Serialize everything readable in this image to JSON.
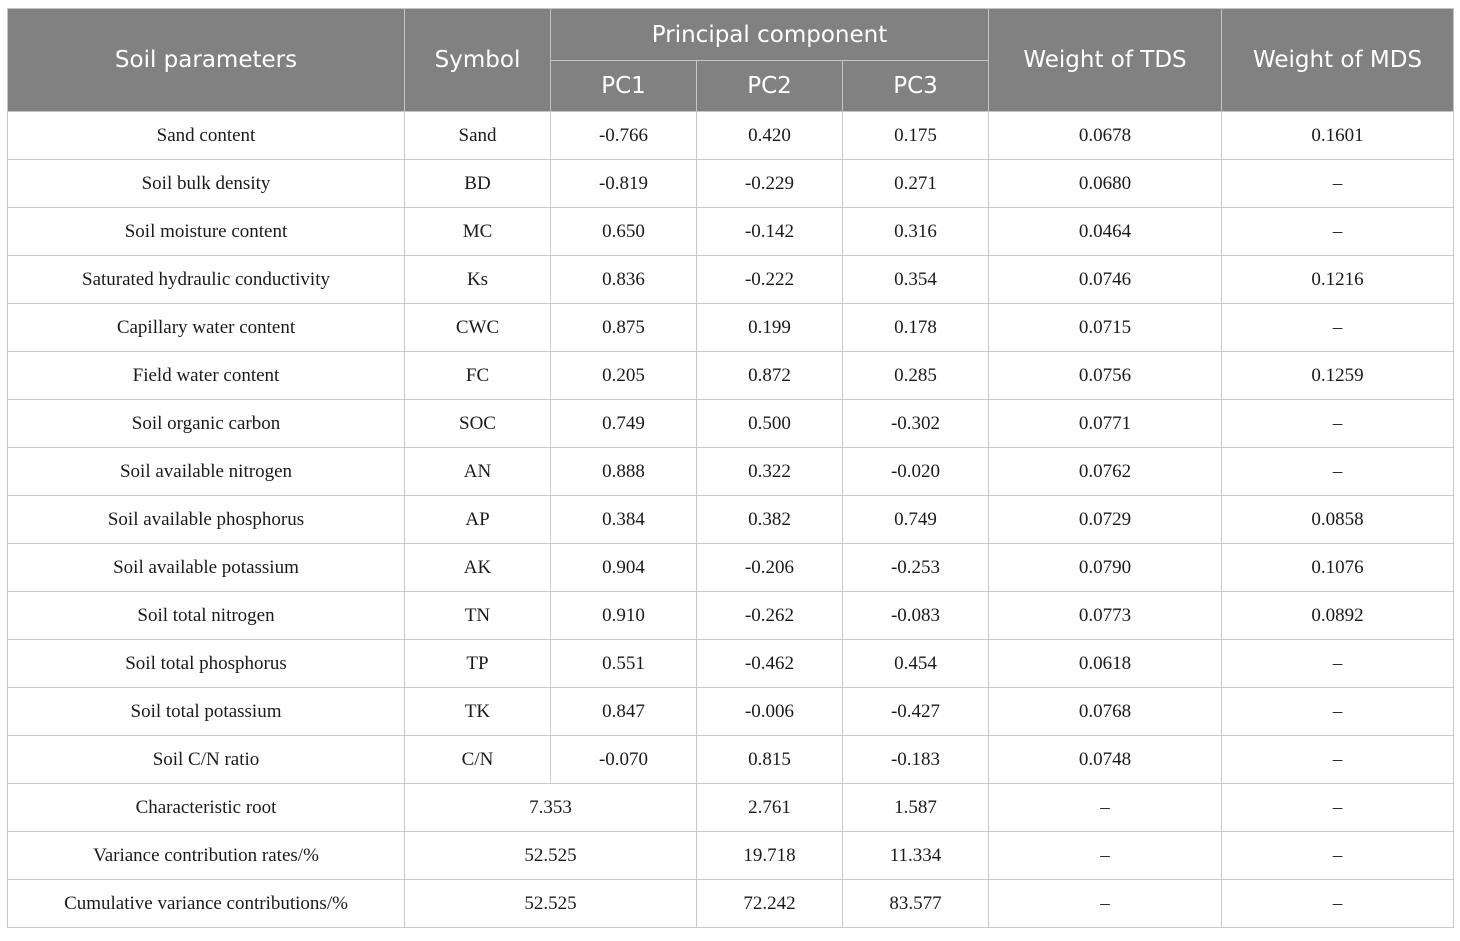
{
  "header": {
    "soil_parameters": "Soil parameters",
    "symbol": "Symbol",
    "principal_component": "Principal component",
    "pc1": "PC1",
    "pc2": "PC2",
    "pc3": "PC3",
    "weight_tds": "Weight of TDS",
    "weight_mds": "Weight of MDS"
  },
  "rows": [
    {
      "param": "Sand content",
      "symbol": "Sand",
      "pc1": "-0.766",
      "pc2": "0.420",
      "pc3": "0.175",
      "tds": "0.0678",
      "mds": "0.1601"
    },
    {
      "param": "Soil bulk density",
      "symbol": "BD",
      "pc1": "-0.819",
      "pc2": "-0.229",
      "pc3": "0.271",
      "tds": "0.0680",
      "mds": "–"
    },
    {
      "param": "Soil moisture content",
      "symbol": "MC",
      "pc1": "0.650",
      "pc2": "-0.142",
      "pc3": "0.316",
      "tds": "0.0464",
      "mds": "–"
    },
    {
      "param": "Saturated hydraulic conductivity",
      "symbol": "Ks",
      "pc1": "0.836",
      "pc2": "-0.222",
      "pc3": "0.354",
      "tds": "0.0746",
      "mds": "0.1216"
    },
    {
      "param": "Capillary water content",
      "symbol": "CWC",
      "pc1": "0.875",
      "pc2": "0.199",
      "pc3": "0.178",
      "tds": "0.0715",
      "mds": "–"
    },
    {
      "param": "Field water content",
      "symbol": "FC",
      "pc1": "0.205",
      "pc2": "0.872",
      "pc3": "0.285",
      "tds": "0.0756",
      "mds": "0.1259"
    },
    {
      "param": "Soil organic carbon",
      "symbol": "SOC",
      "pc1": "0.749",
      "pc2": "0.500",
      "pc3": "-0.302",
      "tds": "0.0771",
      "mds": "–"
    },
    {
      "param": "Soil available nitrogen",
      "symbol": "AN",
      "pc1": "0.888",
      "pc2": "0.322",
      "pc3": "-0.020",
      "tds": "0.0762",
      "mds": "–"
    },
    {
      "param": "Soil available phosphorus",
      "symbol": "AP",
      "pc1": "0.384",
      "pc2": "0.382",
      "pc3": "0.749",
      "tds": "0.0729",
      "mds": "0.0858"
    },
    {
      "param": "Soil available potassium",
      "symbol": "AK",
      "pc1": "0.904",
      "pc2": "-0.206",
      "pc3": "-0.253",
      "tds": "0.0790",
      "mds": "0.1076"
    },
    {
      "param": "Soil total nitrogen",
      "symbol": "TN",
      "pc1": "0.910",
      "pc2": "-0.262",
      "pc3": "-0.083",
      "tds": "0.0773",
      "mds": "0.0892"
    },
    {
      "param": "Soil total phosphorus",
      "symbol": "TP",
      "pc1": "0.551",
      "pc2": "-0.462",
      "pc3": "0.454",
      "tds": "0.0618",
      "mds": "–"
    },
    {
      "param": "Soil total potassium",
      "symbol": "TK",
      "pc1": "0.847",
      "pc2": "-0.006",
      "pc3": "-0.427",
      "tds": "0.0768",
      "mds": "–"
    },
    {
      "param": "Soil C/N ratio",
      "symbol": "C/N",
      "pc1": "-0.070",
      "pc2": "0.815",
      "pc3": "-0.183",
      "tds": "0.0748",
      "mds": "–"
    }
  ],
  "summary": [
    {
      "param": "Characteristic root",
      "pc1": "7.353",
      "pc2": "2.761",
      "pc3": "1.587",
      "tds": "–",
      "mds": "–"
    },
    {
      "param": "Variance contribution rates/%",
      "pc1": "52.525",
      "pc2": "19.718",
      "pc3": "11.334",
      "tds": "–",
      "mds": "–"
    },
    {
      "param": "Cumulative variance contributions/%",
      "pc1": "52.525",
      "pc2": "72.242",
      "pc3": "83.577",
      "tds": "–",
      "mds": "–"
    }
  ]
}
